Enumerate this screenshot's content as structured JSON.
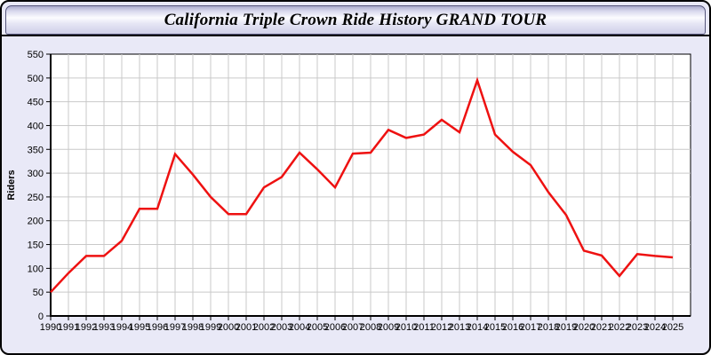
{
  "window": {
    "title": "California Triple Crown Ride History GRAND TOUR"
  },
  "chart_data": {
    "type": "line",
    "title": "California Triple Crown Ride History GRAND TOUR",
    "xlabel": "",
    "ylabel": "Riders",
    "x": [
      1990,
      1991,
      1992,
      1993,
      1994,
      1995,
      1996,
      1997,
      1998,
      1999,
      2000,
      2001,
      2002,
      2003,
      2004,
      2005,
      2006,
      2007,
      2008,
      2009,
      2010,
      2011,
      2012,
      2013,
      2014,
      2015,
      2016,
      2017,
      2018,
      2019,
      2020,
      2021,
      2022,
      2023,
      2024,
      2025
    ],
    "series": [
      {
        "name": "Riders",
        "color": "#ee1111",
        "values": [
          50,
          90,
          126,
          126,
          158,
          225,
          225,
          340,
          297,
          250,
          214,
          214,
          270,
          292,
          343,
          308,
          270,
          341,
          343,
          391,
          374,
          381,
          412,
          386,
          495,
          381,
          345,
          317,
          260,
          212,
          137,
          127,
          84,
          130,
          126,
          123
        ]
      }
    ],
    "ylim": [
      0,
      550
    ],
    "ytick_step": 50,
    "grid": true,
    "legend_position": "none"
  },
  "colors": {
    "window_background": "#e9e9f7",
    "titlebar_gradient_top": "#a9a9cb",
    "titlebar_gradient_light": "#fbfbff",
    "titlebar_gradient_bottom": "#cfcfe8",
    "window_border": "#000000",
    "plot_background": "#ffffff",
    "grid_line": "#c9c9c9",
    "axis_line": "#000000",
    "tick_label": "#000000",
    "series_red": "#ee1111"
  }
}
